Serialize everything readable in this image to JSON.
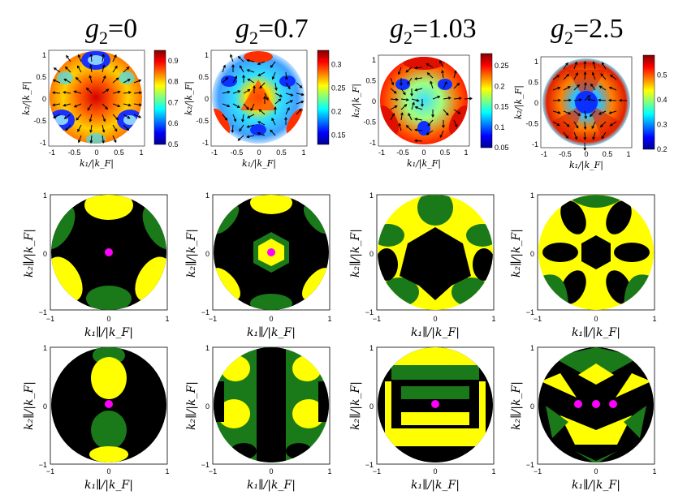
{
  "columns": [
    {
      "title": "g₂=0",
      "cbar_ticks": [
        "0.9",
        "0.8",
        "0.7",
        "0.6",
        "0.5"
      ],
      "cbar_range": [
        0.5,
        0.95
      ]
    },
    {
      "title": "g₂=0.7",
      "cbar_ticks": [
        "0.3",
        "0.25",
        "0.2",
        "0.15"
      ],
      "cbar_range": [
        0.13,
        0.33
      ]
    },
    {
      "title": "g₂=1.03",
      "cbar_ticks": [
        "0.25",
        "0.2",
        "0.15",
        "0.1",
        "0.05"
      ],
      "cbar_range": [
        0.05,
        0.28
      ]
    },
    {
      "title": "g₂=2.5",
      "cbar_ticks": [
        "0.5",
        "0.4",
        "0.3",
        "0.2"
      ],
      "cbar_range": [
        0.2,
        0.58
      ]
    }
  ],
  "row1": {
    "xlabel": "k₁/|k_F|",
    "ylabel": "k₂/|k_F|",
    "xticks": [
      "-1",
      "-0.5",
      "0",
      "0.5",
      "1"
    ],
    "yticks": [
      "1",
      "0.5",
      "0",
      "-0.5",
      "-1"
    ]
  },
  "row23": {
    "xlabel": "k₁∥/|k_F|",
    "ylabel": "k₂∥/|k_F|",
    "xticks": [
      "−1",
      "0",
      "1"
    ],
    "yticks": [
      "1",
      "0",
      "−1"
    ]
  },
  "colors": {
    "green": "#1a7a1a",
    "yellow": "#ffff00",
    "black": "#000000",
    "magenta": "#ff00ff"
  },
  "chart_data": {
    "type": "heatmap",
    "panels": [
      {
        "row": 1,
        "col": 1,
        "content": "gap magnitude with vector field, colorbar 0.5–0.9"
      },
      {
        "row": 1,
        "col": 2,
        "content": "gap magnitude with vector field, colorbar 0.15–0.3"
      },
      {
        "row": 1,
        "col": 3,
        "content": "gap magnitude with vector field, colorbar 0.05–0.25"
      },
      {
        "row": 1,
        "col": 4,
        "content": "gap magnitude with vector field, colorbar 0.2–0.5"
      },
      {
        "row": 2,
        "magenta_points": [
          [
            [
              0,
              0
            ]
          ],
          [
            [
              0,
              0
            ]
          ],
          [],
          []
        ]
      },
      {
        "row": 3,
        "magenta_points": [
          [
            [
              0,
              0
            ]
          ],
          [],
          [
            [
              0,
              0
            ]
          ],
          [
            [
              -0.22,
              0
            ],
            [
              0,
              0
            ],
            [
              0.22,
              0
            ]
          ]
        ]
      }
    ]
  }
}
